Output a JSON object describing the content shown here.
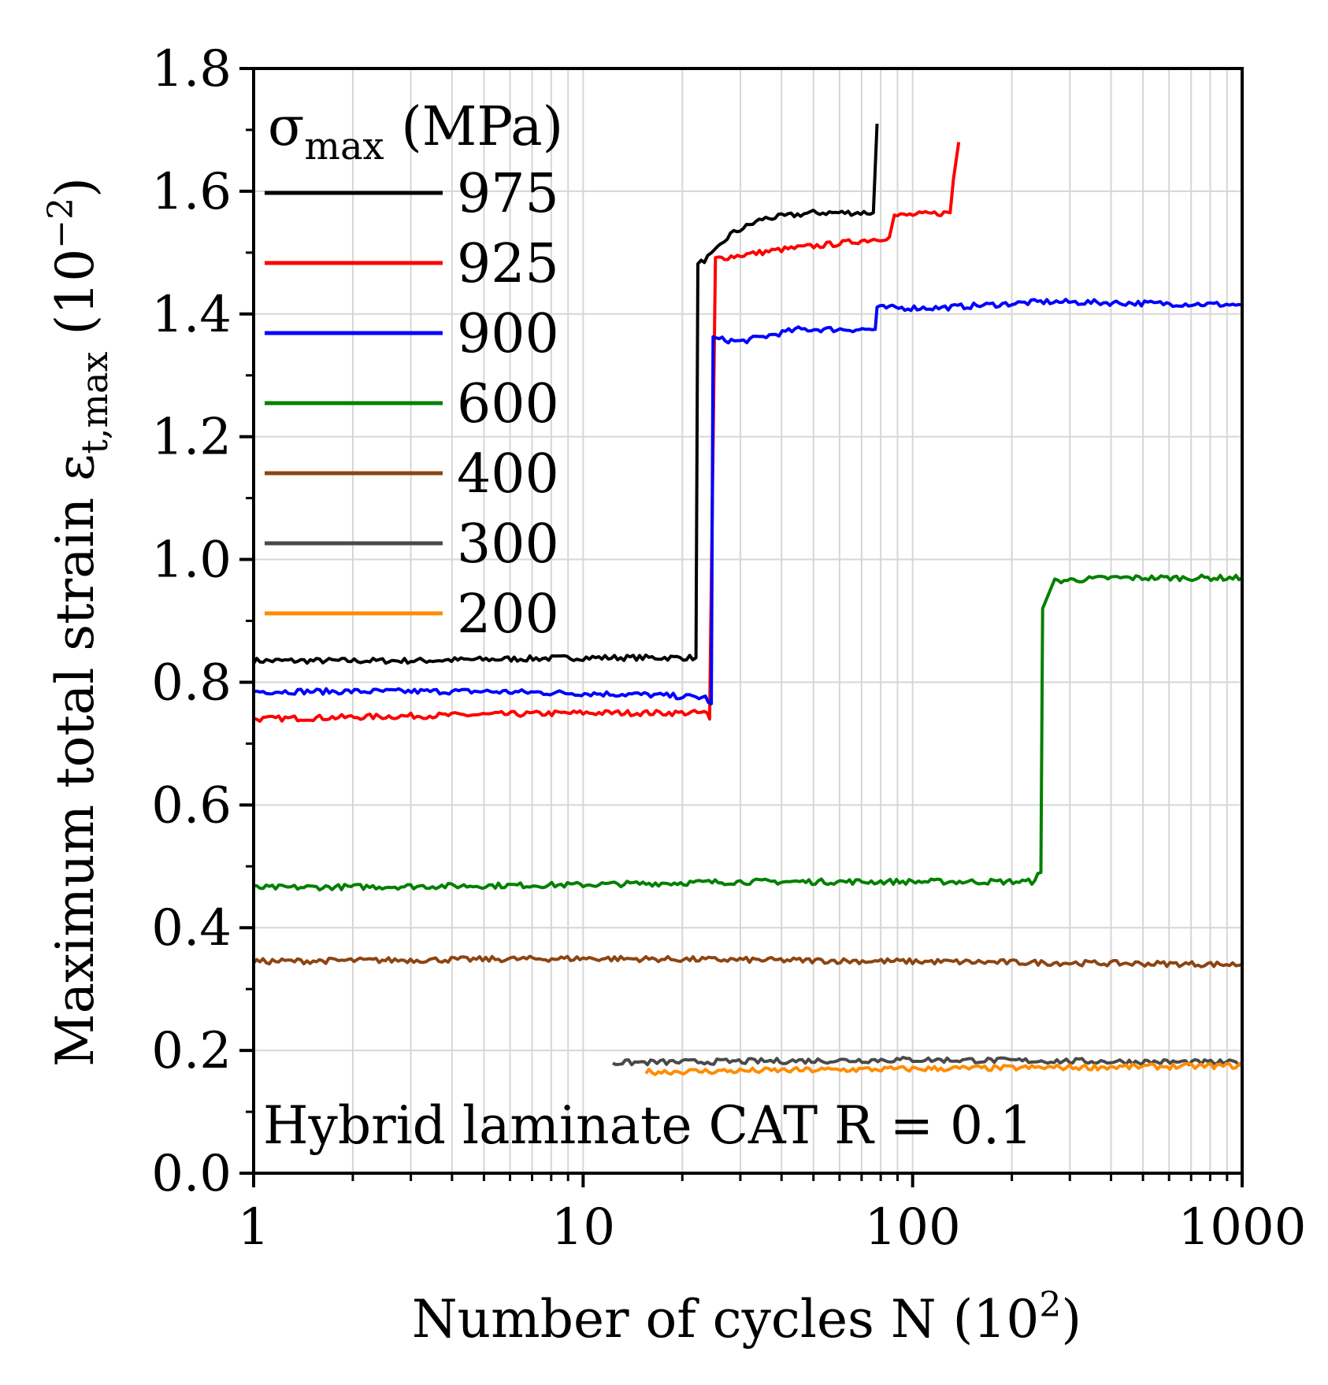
{
  "chart_data": {
    "type": "line",
    "xscale": "log",
    "xlim": [
      1,
      1000
    ],
    "ylim": [
      0.0,
      1.8
    ],
    "xticks": [
      1,
      10,
      100,
      1000
    ],
    "xtick_labels": [
      "1",
      "10",
      "100",
      "1000"
    ],
    "yticks": [
      0.0,
      0.2,
      0.4,
      0.6,
      0.8,
      1.0,
      1.2,
      1.4,
      1.6,
      1.8
    ],
    "ytick_labels": [
      "0.0",
      "0.2",
      "0.4",
      "0.6",
      "0.8",
      "1.0",
      "1.2",
      "1.4",
      "1.6",
      "1.8"
    ],
    "xlabel_main": "Number of cycles N (10",
    "xlabel_sup": "2",
    "xlabel_end": ")",
    "ylabel_main": "Maximum total strain ε",
    "ylabel_sub": "t,max",
    "ylabel_unit_open": " (10",
    "ylabel_sup": "−2",
    "ylabel_unit_close": ")",
    "legend_title_main": "σ",
    "legend_title_sub": "max",
    "legend_title_unit": " (MPa)",
    "annotation": "Hybrid laminate   CAT   R = 0.1",
    "grid": true,
    "series": [
      {
        "name": "975",
        "color": "#000000",
        "points": [
          [
            1,
            0.835
          ],
          [
            3,
            0.835
          ],
          [
            10,
            0.84
          ],
          [
            22,
            0.84
          ],
          [
            22.3,
            1.48
          ],
          [
            25,
            1.5
          ],
          [
            28,
            1.53
          ],
          [
            35,
            1.555
          ],
          [
            50,
            1.565
          ],
          [
            76,
            1.565
          ],
          [
            78,
            1.71
          ]
        ]
      },
      {
        "name": "925",
        "color": "#ff0000",
        "points": [
          [
            1,
            0.74
          ],
          [
            3,
            0.745
          ],
          [
            10,
            0.75
          ],
          [
            23.8,
            0.75
          ],
          [
            24.2,
            0.74
          ],
          [
            25.2,
            1.49
          ],
          [
            40,
            1.505
          ],
          [
            60,
            1.515
          ],
          [
            85,
            1.525
          ],
          [
            88,
            1.56
          ],
          [
            130,
            1.565
          ],
          [
            133,
            1.62
          ],
          [
            138,
            1.68
          ]
        ]
      },
      {
        "name": "900",
        "color": "#0000ff",
        "points": [
          [
            1,
            0.785
          ],
          [
            5,
            0.785
          ],
          [
            15,
            0.78
          ],
          [
            23.5,
            0.775
          ],
          [
            24.5,
            0.765
          ],
          [
            24.8,
            1.36
          ],
          [
            30,
            1.355
          ],
          [
            45,
            1.375
          ],
          [
            77,
            1.375
          ],
          [
            78,
            1.41
          ],
          [
            120,
            1.41
          ],
          [
            250,
            1.42
          ],
          [
            1000,
            1.415
          ]
        ]
      },
      {
        "name": "600",
        "color": "#008000",
        "points": [
          [
            1,
            0.465
          ],
          [
            10,
            0.47
          ],
          [
            30,
            0.475
          ],
          [
            80,
            0.475
          ],
          [
            230,
            0.475
          ],
          [
            245,
            0.49
          ],
          [
            248,
            0.92
          ],
          [
            270,
            0.965
          ],
          [
            400,
            0.97
          ],
          [
            1000,
            0.97
          ]
        ]
      },
      {
        "name": "400",
        "color": "#8b4513",
        "points": [
          [
            1,
            0.345
          ],
          [
            10,
            0.35
          ],
          [
            100,
            0.345
          ],
          [
            1000,
            0.34
          ]
        ]
      },
      {
        "name": "300",
        "color": "#4a4a4a",
        "points": [
          [
            12.3,
            0.18
          ],
          [
            100,
            0.185
          ],
          [
            1000,
            0.18
          ]
        ]
      },
      {
        "name": "200",
        "color": "#ff8c00",
        "points": [
          [
            15.5,
            0.165
          ],
          [
            100,
            0.17
          ],
          [
            1000,
            0.175
          ]
        ]
      }
    ]
  }
}
